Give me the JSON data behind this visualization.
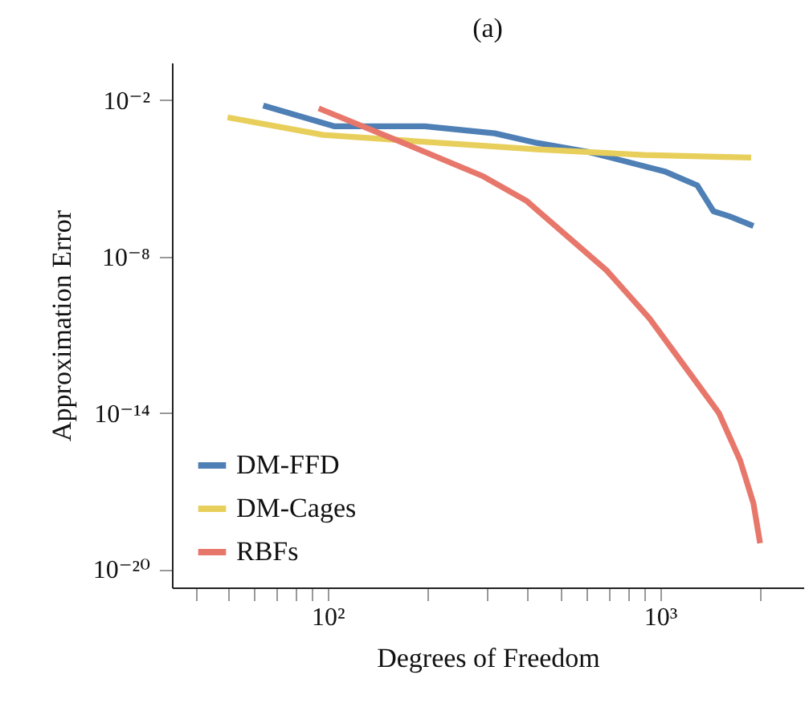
{
  "chart_data": {
    "type": "line",
    "title": "(a)",
    "xlabel": "Degrees of Freedom",
    "ylabel": "Approximation Error",
    "log": "xy",
    "grid": false,
    "legend": "bottom left",
    "line_style": "solid",
    "xlim": [
      34,
      2700
    ],
    "ylim": [
      2e-21,
      0.28
    ],
    "xticks": [
      {
        "value": 40,
        "label": null
      },
      {
        "value": 50,
        "label": null
      },
      {
        "value": 60,
        "label": null
      },
      {
        "value": 70,
        "label": null
      },
      {
        "value": 80,
        "label": null
      },
      {
        "value": 90,
        "label": null
      },
      {
        "value": 100,
        "label": "10²"
      },
      {
        "value": 200,
        "label": null
      },
      {
        "value": 300,
        "label": null
      },
      {
        "value": 400,
        "label": null
      },
      {
        "value": 500,
        "label": null
      },
      {
        "value": 600,
        "label": null
      },
      {
        "value": 700,
        "label": null
      },
      {
        "value": 800,
        "label": null
      },
      {
        "value": 900,
        "label": null
      },
      {
        "value": 1000,
        "label": "10³"
      },
      {
        "value": 2000,
        "label": null
      }
    ],
    "yticks": [
      {
        "value": 1e-20,
        "label": "10⁻²⁰"
      },
      {
        "value": 1e-14,
        "label": "10⁻¹⁴"
      },
      {
        "value": 1e-08,
        "label": "10⁻⁸"
      },
      {
        "value": 0.01,
        "label": "10⁻²"
      }
    ],
    "series": [
      {
        "name": "DM-FFD",
        "color": "#4e7fb5",
        "x": [
          64,
          105,
          196,
          318,
          427,
          618,
          1040,
          1295,
          1448,
          1620,
          1910
        ],
        "values": [
          0.0063,
          0.001,
          0.001,
          0.00054,
          0.00023,
          0.0001,
          1.8e-05,
          5.4e-06,
          5.5e-07,
          3.5e-07,
          1.5e-07
        ]
      },
      {
        "name": "DM-Cages",
        "color": "#e8cf5b",
        "x": [
          50,
          97,
          169,
          427,
          895,
          1880
        ],
        "values": [
          0.0022,
          0.00047,
          0.00029,
          0.00013,
          8e-05,
          6.3e-05
        ]
      },
      {
        "name": "RBFs",
        "color": "#e8776b",
        "x": [
          94,
          169,
          294,
          396,
          690,
          929,
          1205,
          1503,
          1742,
          1910,
          2000
        ],
        "values": [
          0.0049,
          0.00023,
          1.2e-05,
          1.4e-06,
          3e-09,
          4.3e-11,
          4.7e-13,
          1e-14,
          1.5e-16,
          3.4e-18,
          1e-19
        ]
      }
    ]
  }
}
